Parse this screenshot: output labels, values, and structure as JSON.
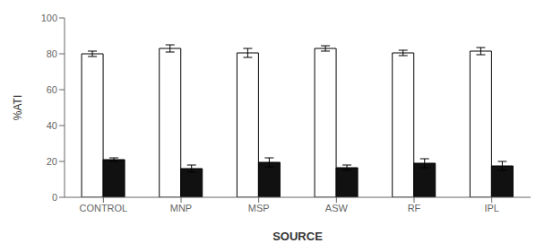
{
  "chart_data": {
    "type": "bar",
    "xlabel": "SOURCE",
    "ylabel": "%ATI",
    "categories": [
      "CONTROL",
      "MNP",
      "MSP",
      "ASW",
      "RF",
      "IPL"
    ],
    "series": [
      {
        "color": "#ffffff",
        "values": [
          80,
          83,
          80.5,
          83,
          80.5,
          81.5
        ],
        "errors": [
          1.5,
          2.0,
          2.5,
          1.5,
          1.5,
          2.0
        ]
      },
      {
        "color": "#111111",
        "values": [
          21,
          16,
          19.5,
          16.5,
          19,
          17.5
        ],
        "errors": [
          1.0,
          2.0,
          2.5,
          1.5,
          2.5,
          2.5
        ]
      }
    ],
    "ylim": [
      0,
      100
    ],
    "yticks": [
      0,
      20,
      40,
      60,
      80,
      100
    ],
    "grid": false
  }
}
